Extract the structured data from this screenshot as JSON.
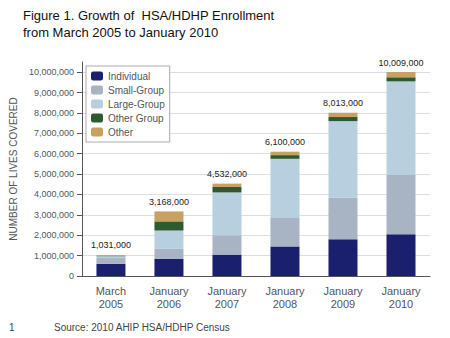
{
  "chart_data": {
    "type": "bar",
    "stacked": true,
    "title": "Figure 1. Growth of  HSA/HDHP Enrollment",
    "subtitle": "from March 2005 to January 2010",
    "ylabel": "NUMBER OF LIVES COVERED",
    "categories": [
      "March\n2005",
      "January\n2006",
      "January\n2007",
      "January\n2008",
      "January\n2009",
      "January\n2010"
    ],
    "series": [
      {
        "name": "Individual",
        "color": "#1a1f6e",
        "values": [
          600000,
          850000,
          1050000,
          1450000,
          1800000,
          2050000
        ]
      },
      {
        "name": "Small-Group",
        "color": "#a8b4c4",
        "values": [
          280000,
          480000,
          950000,
          1400000,
          2050000,
          2900000
        ]
      },
      {
        "name": "Large-Group",
        "color": "#b8cfe0",
        "values": [
          90000,
          900000,
          2100000,
          2900000,
          3750000,
          4600000
        ]
      },
      {
        "name": "Other Group",
        "color": "#2d5a30",
        "values": [
          20000,
          450000,
          270000,
          180000,
          200000,
          200000
        ]
      },
      {
        "name": "Other",
        "color": "#c8a060",
        "values": [
          41000,
          488000,
          162000,
          170000,
          213000,
          259000
        ]
      }
    ],
    "totals": [
      1031000,
      3168000,
      4532000,
      6100000,
      8013000,
      10009000
    ],
    "total_labels": [
      "1,031,000",
      "3,168,000",
      "4,532,000",
      "6,100,000",
      "8,013,000",
      "10,009,000"
    ],
    "ylim": [
      0,
      10500000
    ],
    "yticks": [
      0,
      {
        "value": 1000000,
        "label": "1,000,000"
      },
      {
        "value": 2000000,
        "label": "2,000,000"
      },
      {
        "value": 3000000,
        "label": "3,000,000"
      },
      {
        "value": 4000000,
        "label": "4,000,000"
      },
      {
        "value": 5000000,
        "label": "5,000,000"
      },
      {
        "value": 6000000,
        "label": "6,000,000"
      },
      {
        "value": 7000000,
        "label": "7,000,000"
      },
      {
        "value": 8000000,
        "label": "8,000,000"
      },
      {
        "value": 9000000,
        "label": "9,000,000"
      },
      {
        "value": 10000000,
        "label": "10,000,000"
      }
    ],
    "grid": true,
    "legend": "upper left",
    "annotations": [
      "1",
      "Source: 2010 AHIP HSA/HDHP Census"
    ]
  }
}
